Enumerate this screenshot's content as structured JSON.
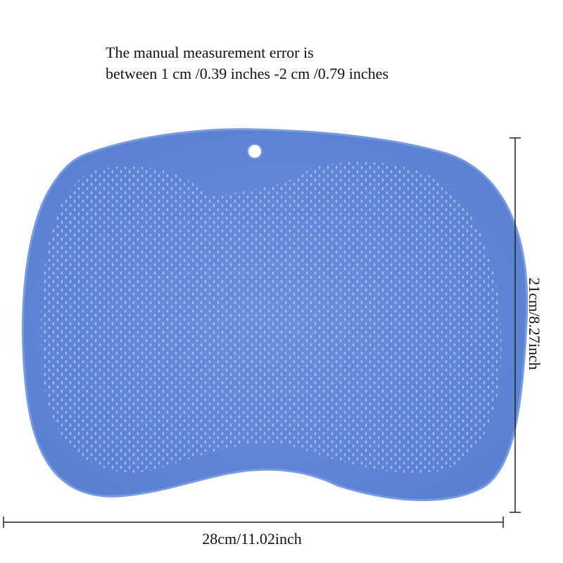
{
  "note": {
    "line1": "The manual measurement error is",
    "line2": "between 1 cm /0.39 inches -2 cm /0.79 inches"
  },
  "dimensions": {
    "width": "28cm/11.02inch",
    "height": "21cm/8.27inch"
  }
}
